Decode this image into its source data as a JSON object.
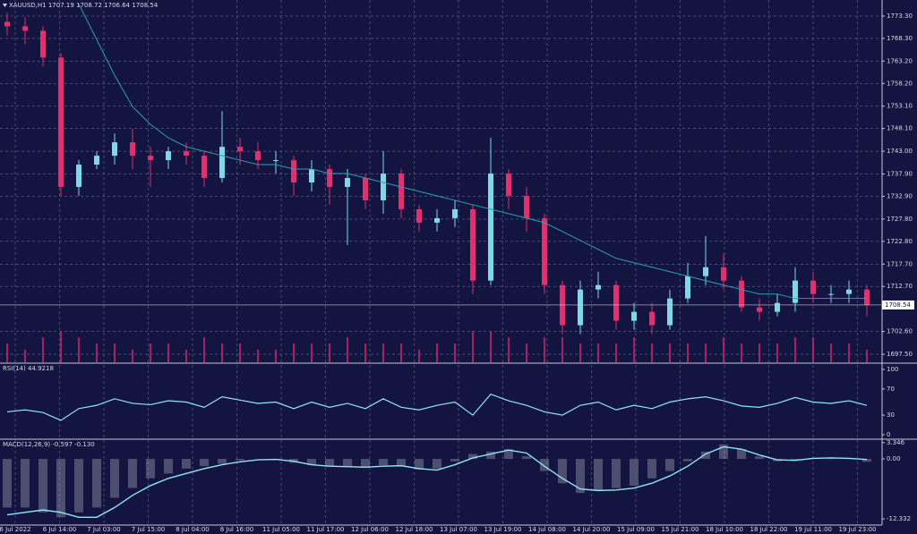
{
  "chart_data": [
    {
      "type": "candlestick",
      "title": "XAUUSD,H1  1707.19 1708.72 1706.64 1708.54",
      "categories": [
        "6 Jul 2022",
        "6 Jul 14:00",
        "7 Jul 03:00",
        "7 Jul 15:00",
        "8 Jul 04:00",
        "8 Jul 16:00",
        "11 Jul 05:00",
        "11 Jul 17:00",
        "12 Jul 06:00",
        "12 Jul 18:00",
        "13 Jul 07:00",
        "13 Jul 19:00",
        "14 Jul 08:00",
        "14 Jul 20:00",
        "15 Jul 09:00",
        "15 Jul 21:00",
        "18 Jul 10:00",
        "18 Jul 22:00",
        "19 Jul 11:00",
        "19 Jul 23:00"
      ],
      "open": [
        1772,
        1771,
        1770,
        1764,
        1735,
        1740,
        1742,
        1745,
        1742,
        1741,
        1743,
        1742,
        1737,
        1744,
        1743,
        1741,
        1741,
        1736,
        1739,
        1735,
        1737,
        1732,
        1738,
        1730,
        1727,
        1728,
        1730,
        1714,
        1738,
        1733,
        1728,
        1713,
        1704,
        1712,
        1713,
        1705,
        1707,
        1704,
        1710,
        1715,
        1717,
        1714,
        1708,
        1707,
        1709,
        1714,
        1711,
        1711,
        1712
      ],
      "high": [
        1774,
        1773,
        1771,
        1765,
        1741,
        1743,
        1747,
        1748,
        1744,
        1744,
        1745,
        1743,
        1752,
        1746,
        1745,
        1743,
        1742,
        1741,
        1740,
        1739,
        1738,
        1743,
        1739,
        1731,
        1730,
        1732,
        1731,
        1746,
        1739,
        1735,
        1729,
        1714,
        1714,
        1716,
        1714,
        1709,
        1709,
        1712,
        1718,
        1724,
        1720,
        1715,
        1710,
        1711,
        1717,
        1716,
        1713,
        1714,
        1713
      ],
      "low": [
        1769,
        1767,
        1762,
        1733,
        1733,
        1739,
        1740,
        1739,
        1735,
        1739,
        1740,
        1735,
        1736,
        1740,
        1739,
        1738,
        1733,
        1734,
        1731,
        1722,
        1730,
        1729,
        1728,
        1725,
        1725,
        1726,
        1711,
        1713,
        1730,
        1725,
        1711,
        1702,
        1702,
        1710,
        1703,
        1703,
        1702,
        1703,
        1709,
        1713,
        1712,
        1707,
        1705,
        1706,
        1707,
        1709,
        1709,
        1709,
        1706
      ],
      "close": [
        1771,
        1770,
        1764,
        1735,
        1740,
        1742,
        1745,
        1742,
        1741,
        1743,
        1742,
        1737,
        1744,
        1743,
        1741,
        1741,
        1736,
        1739,
        1735,
        1737,
        1732,
        1738,
        1730,
        1727,
        1728,
        1730,
        1714,
        1738,
        1733,
        1728,
        1713,
        1704,
        1712,
        1713,
        1705,
        1707,
        1704,
        1710,
        1715,
        1717,
        1714,
        1708,
        1707,
        1709,
        1714,
        1711,
        1711,
        1712,
        1708.54
      ],
      "ma": {
        "color": "#2a9fb2",
        "values": [
          null,
          null,
          null,
          null,
          1776,
          1768,
          1760,
          1753,
          1749,
          1746,
          1744,
          1743,
          1742,
          1741,
          1740,
          1740,
          1739,
          1739,
          1738,
          1738,
          1737,
          1736,
          1735,
          1734,
          1733,
          1732,
          1731,
          1730,
          1729,
          1728,
          1727,
          1725,
          1723,
          1721,
          1719,
          1718,
          1717,
          1716,
          1715,
          1714,
          1713,
          1712,
          1711,
          1711,
          1710,
          1710,
          1710,
          1710,
          1710
        ]
      },
      "volume": {
        "color": "#c0286a",
        "values": [
          3,
          2,
          4,
          5,
          4,
          3,
          3,
          2,
          3,
          3,
          2,
          4,
          3,
          3,
          2,
          2,
          3,
          3,
          3,
          4,
          3,
          3,
          3,
          2,
          3,
          3,
          5,
          5,
          4,
          3,
          4,
          4,
          3,
          3,
          3,
          4,
          3,
          3,
          3,
          3,
          4,
          3,
          3,
          3,
          4,
          4,
          3,
          3,
          2
        ]
      },
      "up_color": "#7fd8e4",
      "down_color": "#e0306e",
      "grid": true,
      "ylim": [
        1695.7,
        1776.9
      ],
      "yticks": [
        {
          "value": 1773.3,
          "label": "1773.30"
        },
        {
          "value": 1768.3,
          "label": "1768.30"
        },
        {
          "value": 1763.2,
          "label": "1763.20"
        },
        {
          "value": 1758.2,
          "label": "1758.20"
        },
        {
          "value": 1753.1,
          "label": "1753.10"
        },
        {
          "value": 1748.1,
          "label": "1748.10"
        },
        {
          "value": 1743,
          "label": "1743.00"
        },
        {
          "value": 1737.9,
          "label": "1737.90"
        },
        {
          "value": 1732.9,
          "label": "1732.90"
        },
        {
          "value": 1727.8,
          "label": "1727.80"
        },
        {
          "value": 1722.8,
          "label": "1722.80"
        },
        {
          "value": 1717.7,
          "label": "1717.70"
        },
        {
          "value": 1712.7,
          "label": "1712.70"
        },
        {
          "value": 1702.6,
          "label": "1702.60"
        },
        {
          "value": 1697.5,
          "label": "1697.50"
        }
      ]
    },
    {
      "type": "line",
      "title": "RSI(14) 44.9218",
      "ylim": [
        0,
        100
      ],
      "yticks": [
        0,
        30,
        70,
        100
      ],
      "series": [
        {
          "color": "#8fe6f0",
          "values": [
            35,
            38,
            34,
            22,
            40,
            45,
            55,
            48,
            46,
            52,
            50,
            42,
            58,
            53,
            48,
            50,
            40,
            50,
            42,
            48,
            40,
            55,
            42,
            38,
            45,
            50,
            30,
            62,
            52,
            45,
            35,
            30,
            45,
            50,
            38,
            45,
            40,
            50,
            55,
            58,
            52,
            44,
            42,
            48,
            57,
            50,
            48,
            52,
            44.92
          ]
        }
      ]
    },
    {
      "type": "macd",
      "title": "MACD(12,26,9) -0.597 -0.130",
      "ylim": [
        -13.6,
        3.68
      ],
      "yticks": [
        {
          "value": 3.346,
          "label": "3.346"
        },
        {
          "value": 0,
          "label": "0.00"
        },
        {
          "value": -12.332,
          "label": "-12.332"
        }
      ],
      "histogram": {
        "color": "#b8b8c8",
        "values": [
          -10,
          -10,
          -11,
          -12,
          -11,
          -10,
          -8,
          -6,
          -4,
          -3,
          -2,
          -1.5,
          -1,
          -0.3,
          0,
          -0.2,
          -0.8,
          -1.3,
          -1.6,
          -1.6,
          -1.6,
          -1.3,
          -1.5,
          -2.2,
          -2,
          -0.5,
          1,
          1.5,
          2,
          0.5,
          -2.5,
          -5,
          -7,
          -6.5,
          -6,
          -5.5,
          -4,
          -2.5,
          -0.5,
          1.5,
          3,
          2,
          0.5,
          -0.5,
          -0.3,
          0.2,
          0.3,
          0,
          -0.597
        ]
      },
      "signal": {
        "color": "#8fe6f0",
        "values": [
          -11.5,
          -11,
          -10.5,
          -11,
          -12,
          -12,
          -10,
          -7.5,
          -5.5,
          -4,
          -3,
          -2,
          -1.2,
          -0.6,
          -0.2,
          -0.1,
          -0.5,
          -1.2,
          -1.5,
          -1.6,
          -1.7,
          -1.5,
          -1.4,
          -2,
          -2.3,
          -1.2,
          0.2,
          1,
          1.8,
          1.2,
          -1.5,
          -4,
          -6.2,
          -6.5,
          -6.4,
          -6,
          -5,
          -3.5,
          -1.5,
          1,
          2.5,
          2,
          0.8,
          -0.2,
          -0.3,
          0.1,
          0.2,
          0.1,
          -0.13
        ]
      }
    }
  ]
}
